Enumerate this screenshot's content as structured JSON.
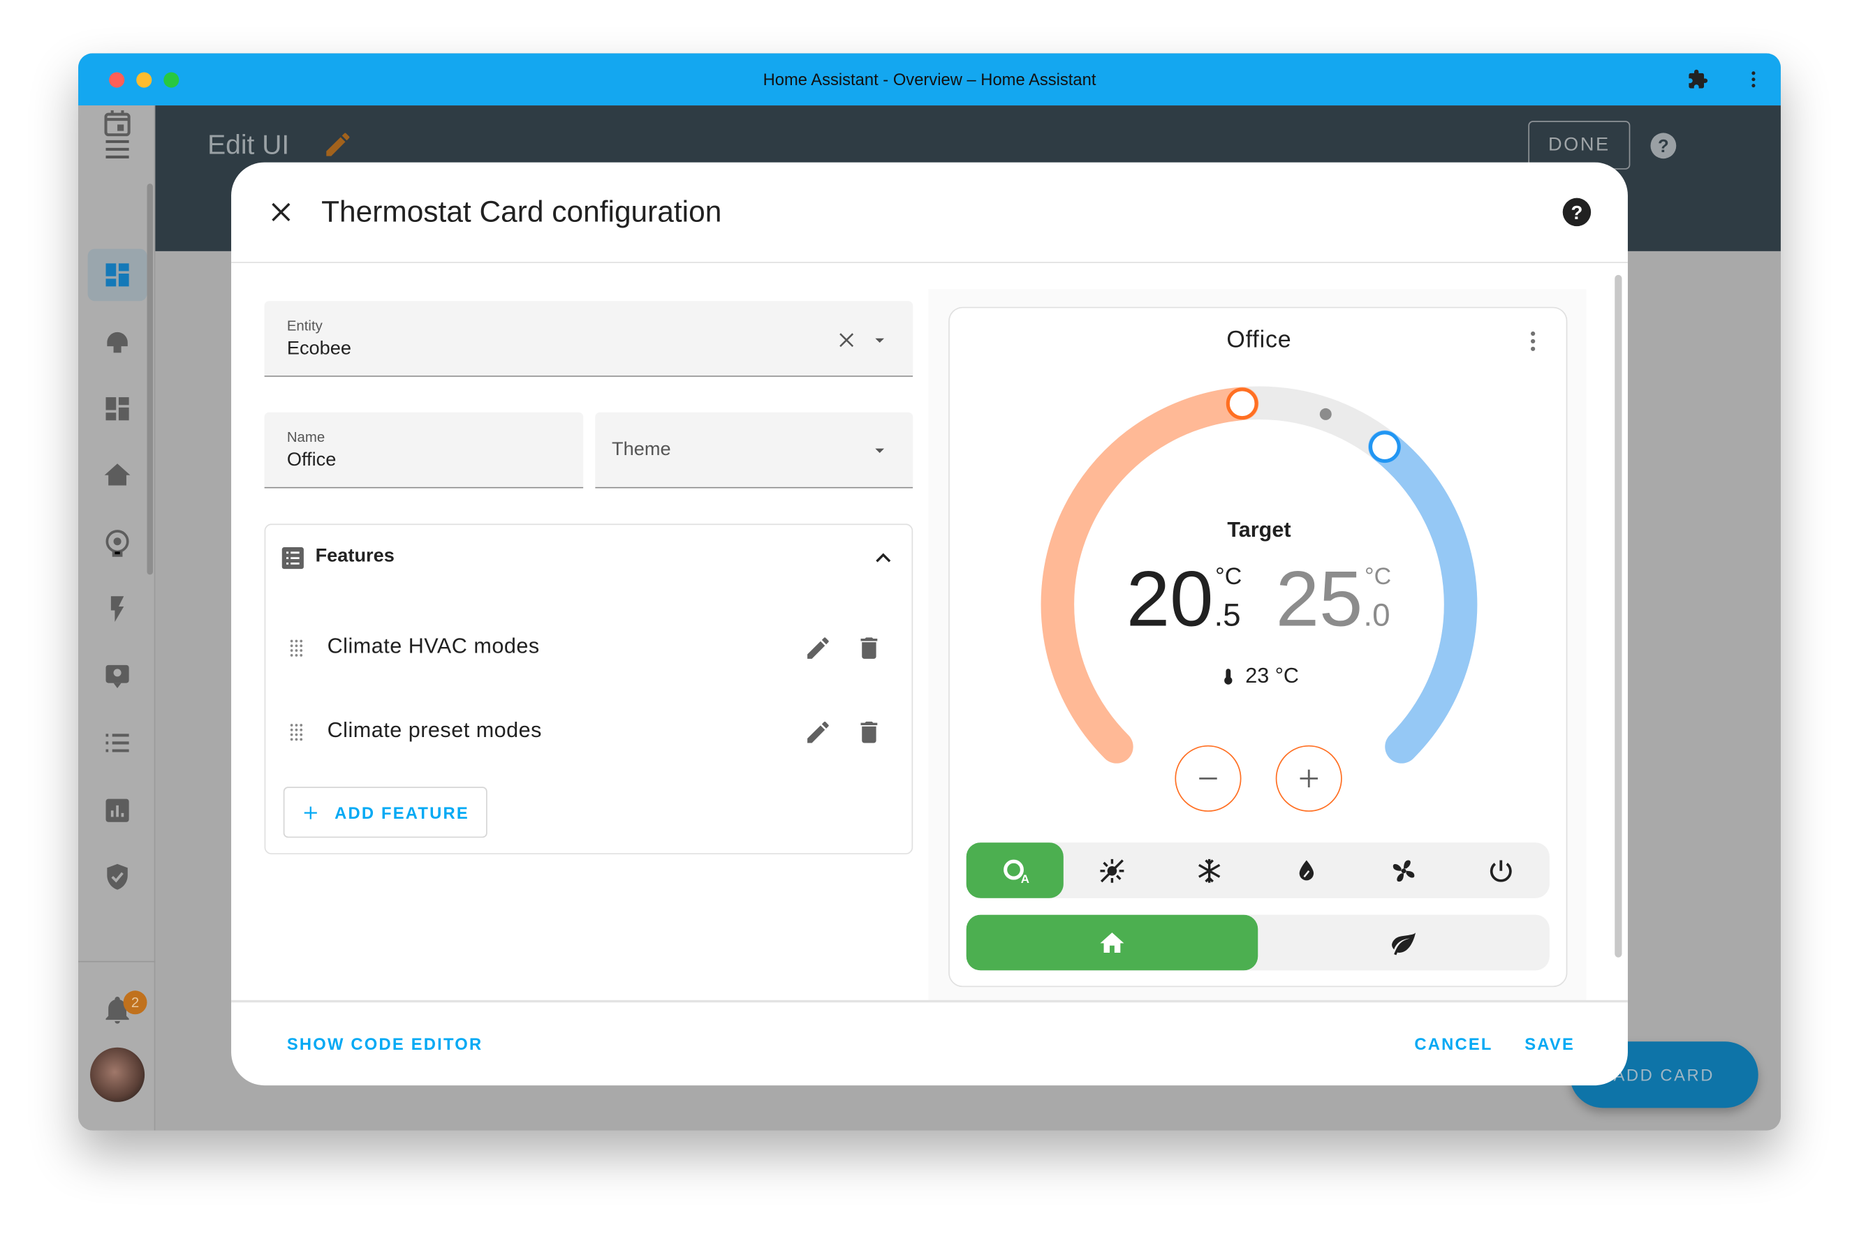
{
  "window": {
    "title": "Home Assistant - Overview – Home Assistant"
  },
  "header": {
    "title": "Edit UI",
    "done_label": "DONE"
  },
  "sidebar": {
    "items": [
      "menu",
      "overview",
      "energy",
      "dashboard",
      "map",
      "logbook",
      "history",
      "media",
      "todo",
      "statistics",
      "security",
      "calendar"
    ],
    "notification_count": "2"
  },
  "fab": {
    "label": "ADD CARD"
  },
  "dialog": {
    "title": "Thermostat Card configuration",
    "entity": {
      "label": "Entity",
      "value": "Ecobee"
    },
    "name": {
      "label": "Name",
      "value": "Office"
    },
    "theme": {
      "placeholder": "Theme"
    },
    "features": {
      "title": "Features",
      "items": [
        {
          "label": "Climate HVAC modes"
        },
        {
          "label": "Climate preset modes"
        }
      ],
      "add_label": "ADD FEATURE"
    },
    "footer": {
      "code_editor": "SHOW CODE EDITOR",
      "cancel": "CANCEL",
      "save": "SAVE"
    }
  },
  "card": {
    "name": "Office",
    "target_label": "Target",
    "low": {
      "int": "20",
      "dec": ".5",
      "unit": "°C",
      "value": 20.5
    },
    "high": {
      "int": "25",
      "dec": ".0",
      "unit": "°C",
      "value": 25.0
    },
    "current": {
      "text": "23 °C",
      "value": 23
    },
    "hvac_modes": [
      "heat_cool",
      "heat",
      "cool",
      "dry",
      "fan_only",
      "off"
    ],
    "hvac_active": "heat_cool",
    "presets": [
      "home",
      "eco"
    ],
    "preset_active": "home"
  },
  "colors": {
    "accent": "#03a9f4",
    "titlebar": "#14a7f0",
    "heat": "#ff6f22",
    "heat_track": "#ffb996",
    "cool": "#2196f3",
    "cool_track": "#95c8f5",
    "active_mode": "#4caf50"
  }
}
